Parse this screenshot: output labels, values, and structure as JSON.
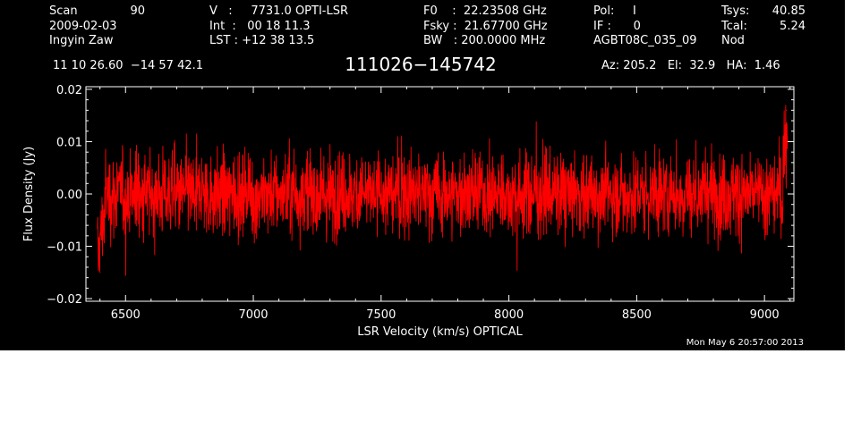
{
  "header": {
    "col1": {
      "l1_label": "Scan",
      "l1_value": "90",
      "l2": "2009-02-03",
      "l3": "Ingyin Zaw"
    },
    "col2": {
      "l1": "V   :     7731.0 OPTI-LSR",
      "l2": "Int  :   00 18 11.3",
      "l3": "LST : +12 38 13.5"
    },
    "col3": {
      "l1": "F0    :  22.23508 GHz",
      "l2": "Fsky :  21.67700 GHz",
      "l3": "BW   : 200.0000 MHz"
    },
    "col4": {
      "l1": "Pol:     I",
      "l2": "IF :      0",
      "l3": "AGBT08C_035_09"
    },
    "col5": {
      "l1_label": "Tsys:",
      "l1_value": "40.85",
      "l2_label": "Tcal:",
      "l2_value": "5.24",
      "l3": "Nod"
    },
    "coords": "11 10 26.60  −14 57 42.1",
    "source": "111026−145742",
    "az_el_ha": "Az: 205.2   El:  32.9   HA:  1.46",
    "timestamp": "Mon May  6 20:57:00 2013"
  },
  "chart_data": {
    "type": "line",
    "xlabel": "LSR Velocity (km/s) OPTICAL",
    "ylabel": "Flux Density (Jy)",
    "xlim": [
      6345,
      9115
    ],
    "ylim": [
      -0.0205,
      0.0205
    ],
    "x_ticks": [
      6500,
      7000,
      7500,
      8000,
      8500,
      9000
    ],
    "x_tick_labels": [
      "6500",
      "7000",
      "7500",
      "8000",
      "8500",
      "9000"
    ],
    "y_ticks": [
      -0.02,
      -0.01,
      0.0,
      0.01,
      0.02
    ],
    "y_tick_labels": [
      "−0.02",
      "−0.01",
      "0.00",
      "0.01",
      "0.02"
    ],
    "grid": false,
    "series": [
      {
        "color": "#ff0000",
        "x_range": [
          6390,
          9090
        ],
        "noise_rms": 0.004,
        "edge_features": [
          {
            "x": 6400,
            "y": -0.015
          },
          {
            "x": 9085,
            "y": 0.016
          }
        ]
      }
    ]
  },
  "colors": {
    "background": "#000000",
    "foreground": "#ffffff",
    "trace": "#ff0000"
  }
}
